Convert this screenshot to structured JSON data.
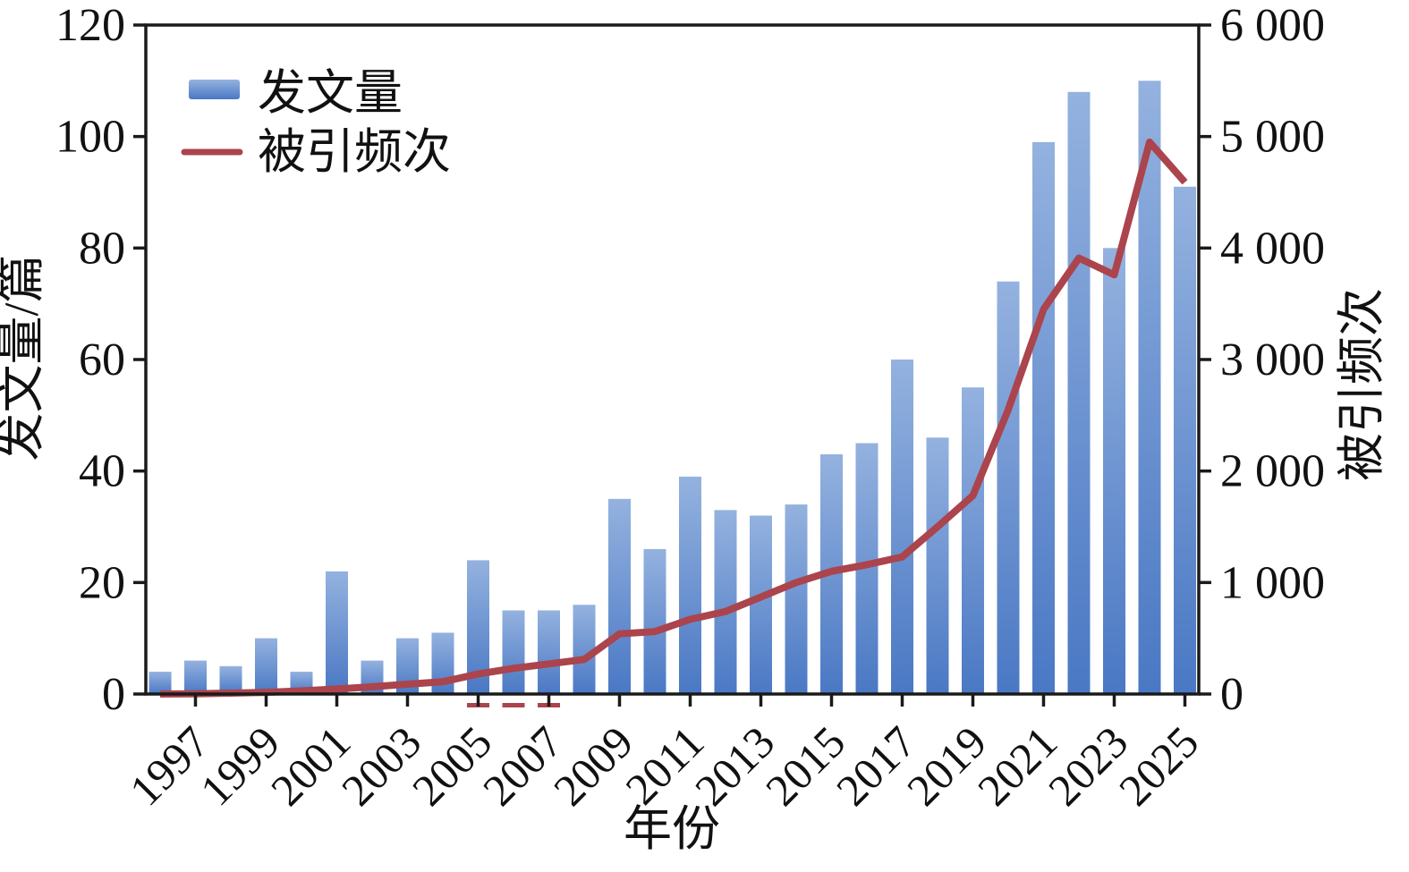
{
  "chart_data": {
    "type": "bar",
    "combo": "bar+line dual axis",
    "title": "",
    "xlabel": "年份",
    "ylabel_left": "发文量/篇",
    "ylabel_right": "被引频次",
    "years": [
      1996,
      1997,
      1998,
      1999,
      2000,
      2001,
      2002,
      2003,
      2004,
      2005,
      2006,
      2007,
      2008,
      2009,
      2010,
      2011,
      2012,
      2013,
      2014,
      2015,
      2016,
      2017,
      2018,
      2019,
      2020,
      2021,
      2022,
      2023,
      2024,
      2025
    ],
    "series": [
      {
        "name": "发文量",
        "type": "bar",
        "axis": "left",
        "values": [
          4,
          6,
          5,
          10,
          4,
          22,
          6,
          10,
          11,
          24,
          15,
          15,
          16,
          35,
          26,
          39,
          33,
          32,
          34,
          43,
          45,
          60,
          46,
          55,
          74,
          99,
          108,
          80,
          110,
          91
        ]
      },
      {
        "name": "被引频次",
        "type": "line",
        "axis": "right",
        "values": [
          0,
          2,
          8,
          15,
          28,
          45,
          65,
          88,
          110,
          180,
          230,
          270,
          310,
          540,
          560,
          670,
          740,
          870,
          1000,
          1100,
          1160,
          1230,
          1500,
          1780,
          2550,
          3450,
          3910,
          3760,
          4950,
          4590
        ]
      }
    ],
    "y_left": {
      "min": 0,
      "max": 120,
      "step": 20,
      "ticks": [
        0,
        20,
        40,
        60,
        80,
        100,
        120
      ],
      "tick_labels": [
        "0",
        "20",
        "40",
        "60",
        "80",
        "100",
        "120"
      ]
    },
    "y_right": {
      "min": 0,
      "max": 6000,
      "step": 1000,
      "ticks": [
        0,
        1000,
        2000,
        3000,
        4000,
        5000,
        6000
      ],
      "tick_labels": [
        "0",
        "1 000",
        "2 000",
        "3 000",
        "4 000",
        "5 000",
        "6 000"
      ]
    },
    "x_tick_years": [
      1997,
      1999,
      2001,
      2003,
      2005,
      2007,
      2009,
      2011,
      2013,
      2015,
      2017,
      2019,
      2021,
      2023,
      2025
    ],
    "x_tick_labels": [
      "1997",
      "1999",
      "2001",
      "2003",
      "2005",
      "2007",
      "2009",
      "2011",
      "2013",
      "2015",
      "2017",
      "2019",
      "2021",
      "2023",
      "2025"
    ],
    "legend": {
      "items": [
        "发文量",
        "被引频次"
      ],
      "position": "top-left-inside"
    },
    "grid": "off",
    "frame": "full box, outward ticks on left/right/bottom",
    "artifact_dash_years": [
      2005,
      2006,
      2007
    ],
    "colors": {
      "bar_gradient_top": "#94B2DF",
      "bar_gradient_bottom": "#4A78C4",
      "line": "#AB444C",
      "axis": "#1A1A1A",
      "background": "#FFFFFF"
    }
  }
}
